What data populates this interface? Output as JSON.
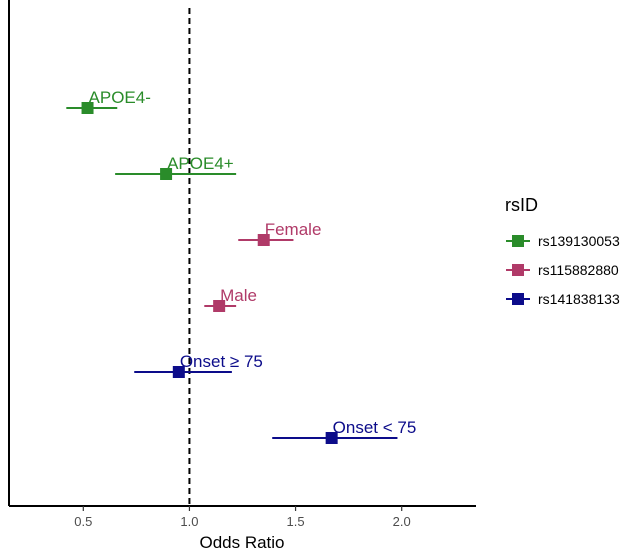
{
  "chart_data": {
    "type": "forest",
    "xlabel": "Odds Ratio",
    "xlim": [
      0.15,
      2.35
    ],
    "xticks": [
      0.5,
      1.0,
      1.5,
      2.0
    ],
    "xtick_labels": [
      "0.5",
      "1.0",
      "1.5",
      "2.0"
    ],
    "reference_line": 1.0,
    "legend": {
      "title": "rsID",
      "position": "right",
      "entries": [
        {
          "label": "rs139130053",
          "color": "#2a8c2a"
        },
        {
          "label": "rs115882880",
          "color": "#b03a68"
        },
        {
          "label": "rs141838133",
          "color": "#0c0c8a"
        }
      ]
    },
    "points": [
      {
        "label": "APOE4-",
        "series": 0,
        "or": 0.52,
        "ci_low": 0.42,
        "ci_high": 0.66
      },
      {
        "label": "APOE4+",
        "series": 0,
        "or": 0.89,
        "ci_low": 0.65,
        "ci_high": 1.22
      },
      {
        "label": "Female",
        "series": 1,
        "or": 1.35,
        "ci_low": 1.23,
        "ci_high": 1.49
      },
      {
        "label": "Male",
        "series": 1,
        "or": 1.14,
        "ci_low": 1.07,
        "ci_high": 1.22
      },
      {
        "label": "Onset ≥ 75",
        "series": 2,
        "or": 0.95,
        "ci_low": 0.74,
        "ci_high": 1.2
      },
      {
        "label": "Onset < 75",
        "series": 2,
        "or": 1.67,
        "ci_low": 1.39,
        "ci_high": 1.98
      }
    ]
  }
}
